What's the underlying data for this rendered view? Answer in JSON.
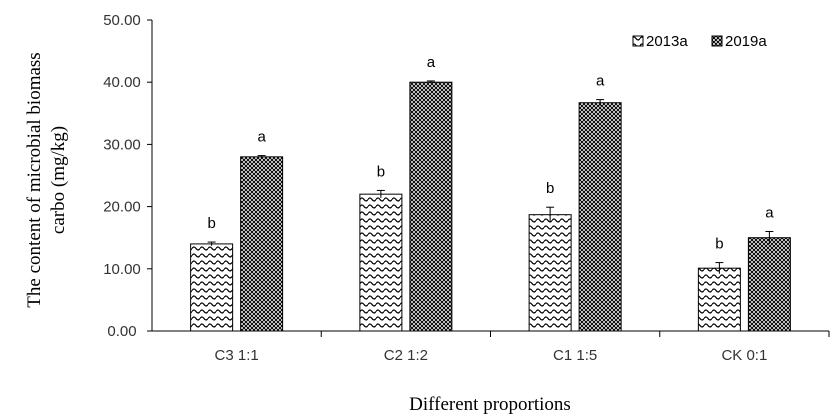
{
  "chart_data": {
    "type": "bar",
    "title": "",
    "xlabel": "Different proportions",
    "ylabel_lines": [
      "The content of microbial biomass",
      "carbo (mg/kg)"
    ],
    "categories": [
      "C3 1:1",
      "C2 1:2",
      "C1 1:5",
      "CK 0:1"
    ],
    "ylim": [
      0,
      50
    ],
    "yticks": [
      "0.00",
      "10.00",
      "20.00",
      "30.00",
      "40.00",
      "50.00"
    ],
    "grid": false,
    "legend_position": "top-right",
    "series": [
      {
        "name": "2013a",
        "values": [
          14.0,
          22.0,
          18.7,
          10.1
        ],
        "errors": [
          0.3,
          0.6,
          1.2,
          0.9
        ],
        "labels": [
          "b",
          "b",
          "b",
          "b"
        ]
      },
      {
        "name": "2019a",
        "values": [
          28.0,
          40.0,
          36.7,
          15.0
        ],
        "errors": [
          0.2,
          0.2,
          0.5,
          1.0
        ],
        "labels": [
          "a",
          "a",
          "a",
          "a"
        ]
      }
    ]
  }
}
